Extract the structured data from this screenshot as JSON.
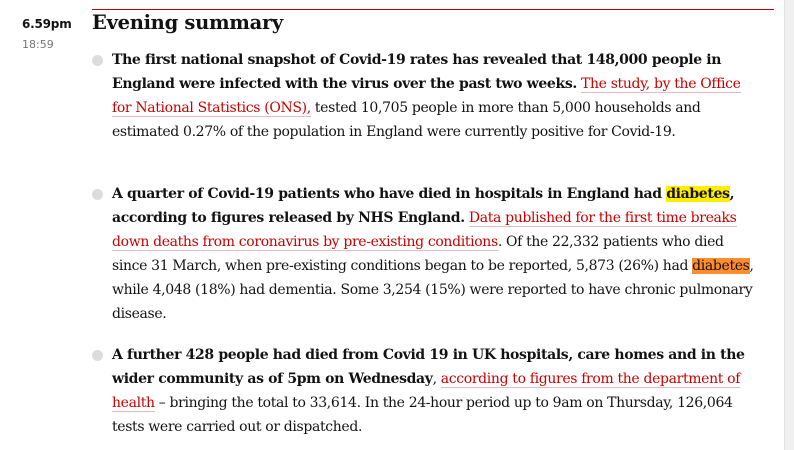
{
  "time": {
    "main": "6.59pm",
    "sub": "18:59"
  },
  "headline": "Evening summary",
  "entries": [
    {
      "bold": "The first national snapshot of Covid-19 rates has revealed that 148,000 people in England were infected with the virus over the past two weeks.",
      "link": "The study, by the Office for National Statistics (ONS),",
      "rest": " tested 10,705 people in more than 5,000 households and estimated 0.27% of the population in England were currently positive for Covid-19."
    },
    {
      "bold_a": "A quarter of Covid-19 patients who have died in hospitals in England had ",
      "highlight_bold": "diabetes",
      "bold_b": ", according to figures released by NHS England.",
      "link": "Data published for the first time breaks down deaths from coronavirus by pre-existing conditions",
      "rest_a": ". Of the 22,332 patients who died since 31 March, when pre-existing conditions began to be reported, 5,873 (26%) had ",
      "highlight": "diabetes",
      "rest_b": ", while 4,048 (18%) had dementia. Some 3,254 (15%) were reported to have chronic pulmonary disease."
    },
    {
      "bold": "A further 428 people had died from Covid 19 in UK hospitals, care homes and in the wider community as of 5pm on Wednesday",
      "comma": ", ",
      "link": "according to figures from the department of health",
      "rest": " – bringing the total to 33,614. In the 24-hour period up to 9am on Thursday, 126,064 tests were carried out or dispatched."
    }
  ],
  "colors": {
    "link": "#c70000",
    "highlight_yellow": "#ffee00",
    "highlight_orange": "#ff8c2e",
    "bullet": "#dcdcdc"
  }
}
